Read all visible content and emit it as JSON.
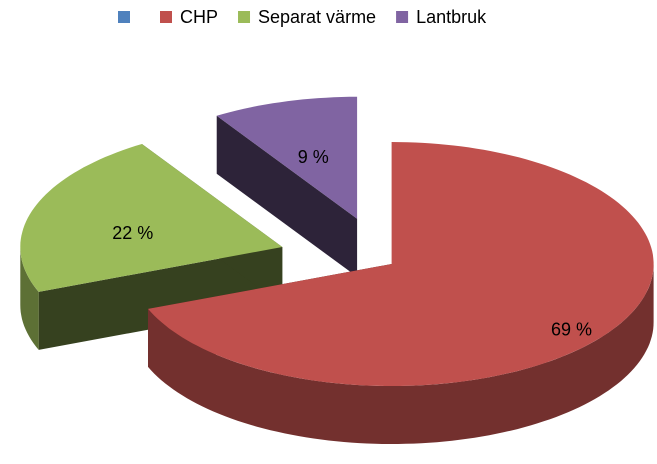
{
  "chart_data": {
    "type": "pie3d",
    "categories": [
      null,
      "CHP",
      "Separat värme",
      "Lantbruk"
    ],
    "values": [
      0,
      69,
      22,
      9
    ],
    "value_labels": [
      null,
      "69 %",
      "22 %",
      "9 %"
    ],
    "colors": [
      "#4f81bd",
      "#c0504d",
      "#9bbb59",
      "#8064a2"
    ],
    "legend": "top"
  }
}
